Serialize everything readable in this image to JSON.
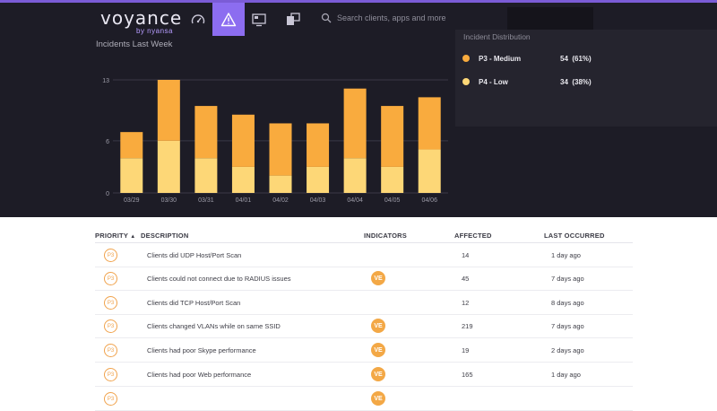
{
  "colors": {
    "brand_purple": "#8c6df0",
    "p3_medium": "#f9ab3e",
    "p4_low": "#fdd777",
    "dark_bg": "#1d1c26",
    "panel_bg": "#25242e"
  },
  "header": {
    "logo_text": "voyance",
    "logo_sub": "by nyansa",
    "nav": [
      {
        "icon": "gauge-icon",
        "active": false
      },
      {
        "icon": "warning-icon",
        "active": true
      },
      {
        "icon": "monitor-icon",
        "active": false
      },
      {
        "icon": "devices-icon",
        "active": false
      }
    ],
    "search_placeholder": "Search clients, apps and more"
  },
  "incidents_chart": {
    "title": "Incidents Last Week"
  },
  "chart_data": {
    "type": "bar",
    "stacked": true,
    "title": "Incidents Last Week",
    "categories": [
      "03/29",
      "03/30",
      "03/31",
      "04/01",
      "04/02",
      "04/03",
      "04/04",
      "04/05",
      "04/06"
    ],
    "series": [
      {
        "name": "P4 - Low",
        "color": "#fdd777",
        "values": [
          4,
          6,
          4,
          3,
          2,
          3,
          4,
          3,
          5
        ]
      },
      {
        "name": "P3 - Medium",
        "color": "#f9ab3e",
        "values": [
          3,
          7,
          6,
          6,
          6,
          5,
          8,
          7,
          6
        ]
      }
    ],
    "yticks": [
      "0",
      "6",
      "13"
    ],
    "ylim": [
      0,
      13
    ],
    "grid": true
  },
  "distribution": {
    "title": "Incident Distribution",
    "items": [
      {
        "label": "P3 - Medium",
        "count": "54",
        "pct": "(61%)",
        "color": "#f9ab3e"
      },
      {
        "label": "P4 - Low",
        "count": "34",
        "pct": "(38%)",
        "color": "#fdd777"
      }
    ]
  },
  "table": {
    "headers": {
      "priority": "PRIORITY",
      "sort_arrow": "▲",
      "description": "DESCRIPTION",
      "indicators": "INDICATORS",
      "affected": "AFFECTED",
      "last_occurred": "LAST OCCURRED"
    },
    "rows": [
      {
        "priority": "P3",
        "description": "Clients did UDP Host/Port Scan",
        "indicator": "",
        "affected": "14",
        "last": "1 day ago"
      },
      {
        "priority": "P3",
        "description": "Clients could not connect due to RADIUS issues",
        "indicator": "VE",
        "affected": "45",
        "last": "7 days ago"
      },
      {
        "priority": "P3",
        "description": "Clients did TCP Host/Port Scan",
        "indicator": "",
        "affected": "12",
        "last": "8 days ago"
      },
      {
        "priority": "P3",
        "description": "Clients changed VLANs while on same SSID",
        "indicator": "VE",
        "affected": "219",
        "last": "7 days ago"
      },
      {
        "priority": "P3",
        "description": "Clients had poor Skype performance",
        "indicator": "VE",
        "affected": "19",
        "last": "2 days ago"
      },
      {
        "priority": "P3",
        "description": "Clients had poor Web performance",
        "indicator": "VE",
        "affected": "165",
        "last": "1 day ago"
      },
      {
        "priority": "P3",
        "description": "",
        "indicator": "VE",
        "affected": "",
        "last": ""
      }
    ]
  }
}
